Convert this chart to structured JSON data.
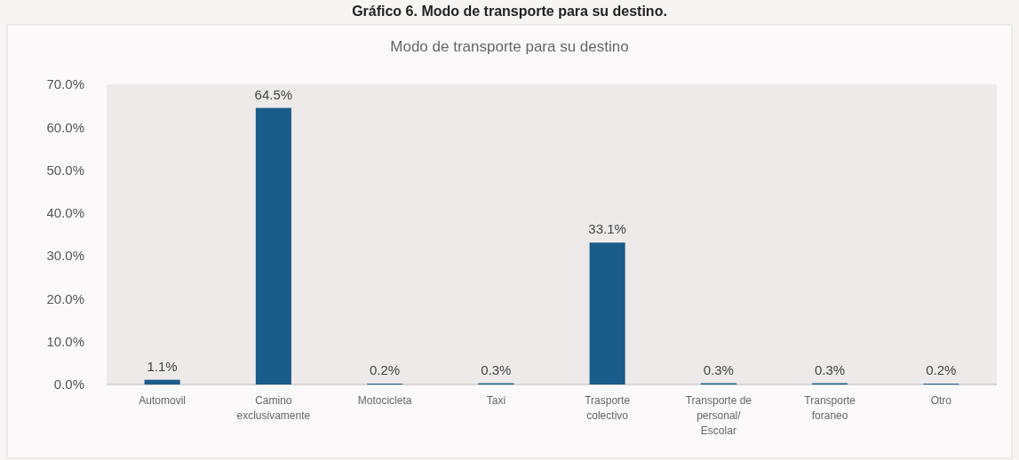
{
  "chart_data": {
    "type": "bar",
    "title": "Gráfico 6. Modo de transporte para su destino.",
    "subtitle": "Modo de transporte para su destino",
    "categories": [
      "Automovil",
      "Camino exclusivamente",
      "Motocicleta",
      "Taxi",
      "Trasporte colectivo",
      "Transporte de personal/ Escolar",
      "Transporte foraneo",
      "Otro"
    ],
    "values": [
      1.1,
      64.5,
      0.2,
      0.3,
      33.1,
      0.3,
      0.3,
      0.2
    ],
    "value_labels": [
      "1.1%",
      "64.5%",
      "0.2%",
      "0.3%",
      "33.1%",
      "0.3%",
      "0.3%",
      "0.2%"
    ],
    "color": "#1a5c8a",
    "ylim": [
      0,
      70
    ],
    "yticks": [
      {
        "value": 0,
        "label": "0.0%"
      },
      {
        "value": 10,
        "label": "10.0%"
      },
      {
        "value": 20,
        "label": "20.0%"
      },
      {
        "value": 30,
        "label": "30.0%"
      },
      {
        "value": 40,
        "label": "40.0%"
      },
      {
        "value": 50,
        "label": "50.0%"
      },
      {
        "value": 60,
        "label": "60.0%"
      },
      {
        "value": 70,
        "label": "70.0%"
      }
    ]
  }
}
